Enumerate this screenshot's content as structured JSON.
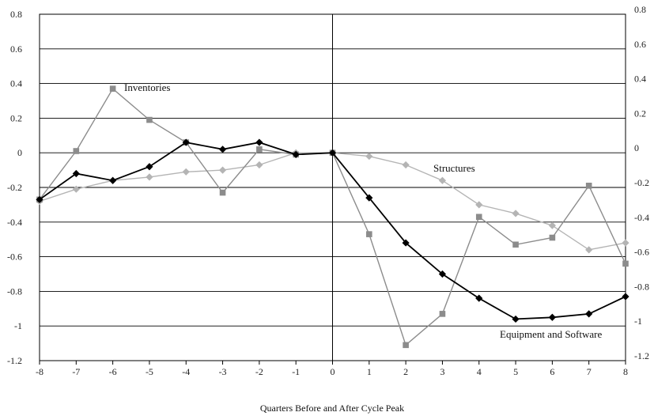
{
  "chart_data": {
    "type": "line",
    "title": "",
    "xlabel": "Quarters Before and After Cycle Peak",
    "ylabel": "",
    "x": [
      -8,
      -7,
      -6,
      -5,
      -4,
      -3,
      -2,
      -1,
      0,
      1,
      2,
      3,
      4,
      5,
      6,
      7,
      8
    ],
    "xlim": [
      -8,
      8
    ],
    "ylim": [
      -1.2,
      0.8
    ],
    "x_ticks": [
      "-8",
      "-7",
      "-6",
      "-5",
      "-4",
      "-3",
      "-2",
      "-1",
      "0",
      "1",
      "2",
      "3",
      "4",
      "5",
      "6",
      "7",
      "8"
    ],
    "y_ticks": [
      "0.8",
      "0.6",
      "0.4",
      "0.2",
      "0",
      "-0.2",
      "-0.4",
      "-0.6",
      "-0.8",
      "-1",
      "-1.2"
    ],
    "y_ticks_right": [
      "0.8",
      "0.6",
      "0.4",
      "0.2",
      "0",
      "-0.2",
      "-0.4",
      "-0.6",
      "-0.8",
      "-1",
      "-1.2"
    ],
    "grid": "horizontal",
    "series": [
      {
        "name": "Inventories",
        "color": "#8c8c8c",
        "marker": "square",
        "values": [
          -0.27,
          0.01,
          0.37,
          0.19,
          0.06,
          -0.23,
          0.02,
          -0.01,
          0.0,
          -0.47,
          -1.11,
          -0.93,
          -0.37,
          -0.53,
          -0.49,
          -0.19,
          -0.64
        ]
      },
      {
        "name": "Equipment and Software",
        "color": "#000000",
        "marker": "diamond",
        "values": [
          -0.27,
          -0.12,
          -0.16,
          -0.08,
          0.06,
          0.02,
          0.06,
          -0.01,
          0.0,
          -0.26,
          -0.52,
          -0.7,
          -0.84,
          -0.96,
          -0.95,
          -0.93,
          -0.83
        ]
      },
      {
        "name": "Structures",
        "color": "#b4b4b4",
        "marker": "diamond",
        "values": [
          -0.28,
          -0.21,
          -0.16,
          -0.14,
          -0.11,
          -0.1,
          -0.07,
          0.0,
          0.0,
          -0.02,
          -0.07,
          -0.16,
          -0.3,
          -0.35,
          -0.42,
          -0.56,
          -0.52
        ]
      }
    ],
    "labels": [
      {
        "series": "Inventories",
        "text": "Inventories"
      },
      {
        "series": "Structures",
        "text": "Structures"
      },
      {
        "series": "Equipment and Software",
        "text": "Equipment and Software"
      }
    ]
  }
}
